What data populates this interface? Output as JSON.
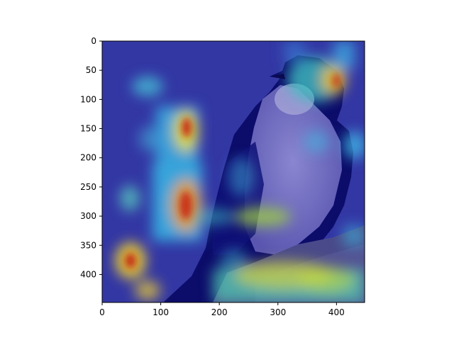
{
  "figure": {
    "image_subject": "tree swallow perched on a wooden post, overlaid with a jet-colormap attention heatmap",
    "colormap": "jet",
    "colors": {
      "background": "#ffffff",
      "axis": "#000000",
      "low": "#1a1aa8",
      "mid": "#2aa4d8",
      "high": "#f0e030",
      "peak": "#c02010"
    }
  },
  "axes": {
    "x_ticks": [
      "0",
      "100",
      "200",
      "300",
      "400"
    ],
    "y_ticks": [
      "0",
      "50",
      "100",
      "150",
      "200",
      "250",
      "300",
      "350",
      "400"
    ],
    "xlim": [
      0,
      448
    ],
    "ylim": [
      448,
      0
    ]
  }
}
